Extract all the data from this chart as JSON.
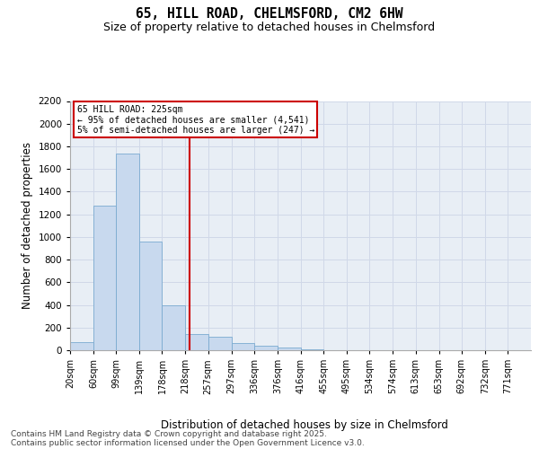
{
  "title_line1": "65, HILL ROAD, CHELMSFORD, CM2 6HW",
  "title_line2": "Size of property relative to detached houses in Chelmsford",
  "xlabel": "Distribution of detached houses by size in Chelmsford",
  "ylabel": "Number of detached properties",
  "annotation_title": "65 HILL ROAD: 225sqm",
  "annotation_line2": "← 95% of detached houses are smaller (4,541)",
  "annotation_line3": "5% of semi-detached houses are larger (247) →",
  "property_size": 225,
  "bar_color": "#c8d9ee",
  "bar_edge_color": "#7aaad0",
  "grid_color": "#d0d8e8",
  "background_color": "#e8eef5",
  "vline_color": "#cc0000",
  "annotation_box_color": "#cc0000",
  "bins": [
    20,
    60,
    99,
    139,
    178,
    218,
    257,
    297,
    336,
    376,
    416,
    455,
    495,
    534,
    574,
    613,
    653,
    692,
    732,
    771,
    811
  ],
  "counts": [
    75,
    1280,
    1740,
    960,
    400,
    140,
    120,
    65,
    40,
    25,
    5,
    3,
    2,
    1,
    1,
    0,
    0,
    0,
    0,
    0
  ],
  "ylim": [
    0,
    2200
  ],
  "yticks": [
    0,
    200,
    400,
    600,
    800,
    1000,
    1200,
    1400,
    1600,
    1800,
    2000,
    2200
  ],
  "footer_line1": "Contains HM Land Registry data © Crown copyright and database right 2025.",
  "footer_line2": "Contains public sector information licensed under the Open Government Licence v3.0.",
  "title_fontsize": 10.5,
  "subtitle_fontsize": 9,
  "axis_label_fontsize": 8.5,
  "tick_fontsize": 7.5,
  "footer_fontsize": 6.5,
  "annotation_fontsize": 7
}
